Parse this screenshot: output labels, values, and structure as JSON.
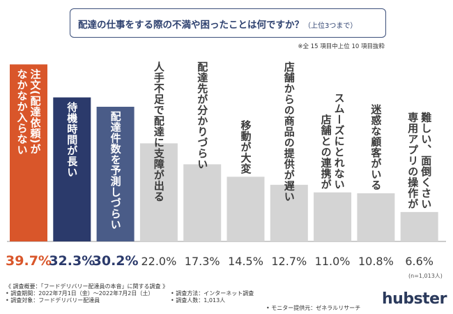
{
  "title": {
    "main": "配達の仕事をする際の不満や困ったことは何ですか？",
    "sub": "（上位3つまで）"
  },
  "note": "※全 15 項目中上位 10 項目抜粋",
  "sample": "(n=1,013人)",
  "footer": {
    "overview": "《 調査概要：「フードデリバリー配達員の本音」に関する調査 》",
    "period": "• 調査期間：2022年7月1日（金）～2022年7月2日（土）",
    "target": "• 調査対象：フードデリバリー配達員",
    "method": "• 調査方法：インターネット調査",
    "count": "• 調査人数：1,013人",
    "provider": "• モニター提供元：ゼネラルリサーチ"
  },
  "brand": "hubster",
  "colors": {
    "accent": "#d9562a",
    "navy": "#2b3a6b",
    "slate": "#4a5c88",
    "gray": "#d4d4d4"
  },
  "chart_data": {
    "type": "bar",
    "title": "配達の仕事をする際の不満や困ったことは何ですか？（上位3つまで）",
    "categories": [
      "注文（配達依頼）がなかなか入らない",
      "待機時間が長い",
      "配達件数を予測しづらい",
      "人手不足で配達に支障が出る",
      "配達先が分かりづらい",
      "移動が大変",
      "店舗からの商品の提供が遅い",
      "店舗との連携がスムーズにとれない",
      "迷惑な顧客がいる",
      "専用アプリの操作が難しい、面倒くさい"
    ],
    "label_lines": [
      [
        "なかなか入らない",
        "注文(配達依頼)が"
      ],
      [
        "待機時間が長い"
      ],
      [
        "配達件数を予測しづらい"
      ],
      [
        "人手不足で配達に支障が出る"
      ],
      [
        "配達先が分かりづらい"
      ],
      [
        "移動が大変"
      ],
      [
        "店舗からの商品の提供が遅い"
      ],
      [
        "店舗との連携が",
        "スムーズにとれない"
      ],
      [
        "迷惑な顧客がいる"
      ],
      [
        "専用アプリの操作が",
        "難しい、面倒くさい"
      ]
    ],
    "values": [
      39.7,
      32.3,
      30.2,
      22.0,
      17.3,
      14.5,
      12.7,
      11.0,
      10.8,
      6.6
    ],
    "value_labels": [
      "39.7%",
      "32.3%",
      "30.2%",
      "22.0%",
      "17.3%",
      "14.5%",
      "12.7%",
      "11.0%",
      "10.8%",
      "6.6%"
    ],
    "unit": "%",
    "ylim": [
      0,
      41
    ]
  }
}
